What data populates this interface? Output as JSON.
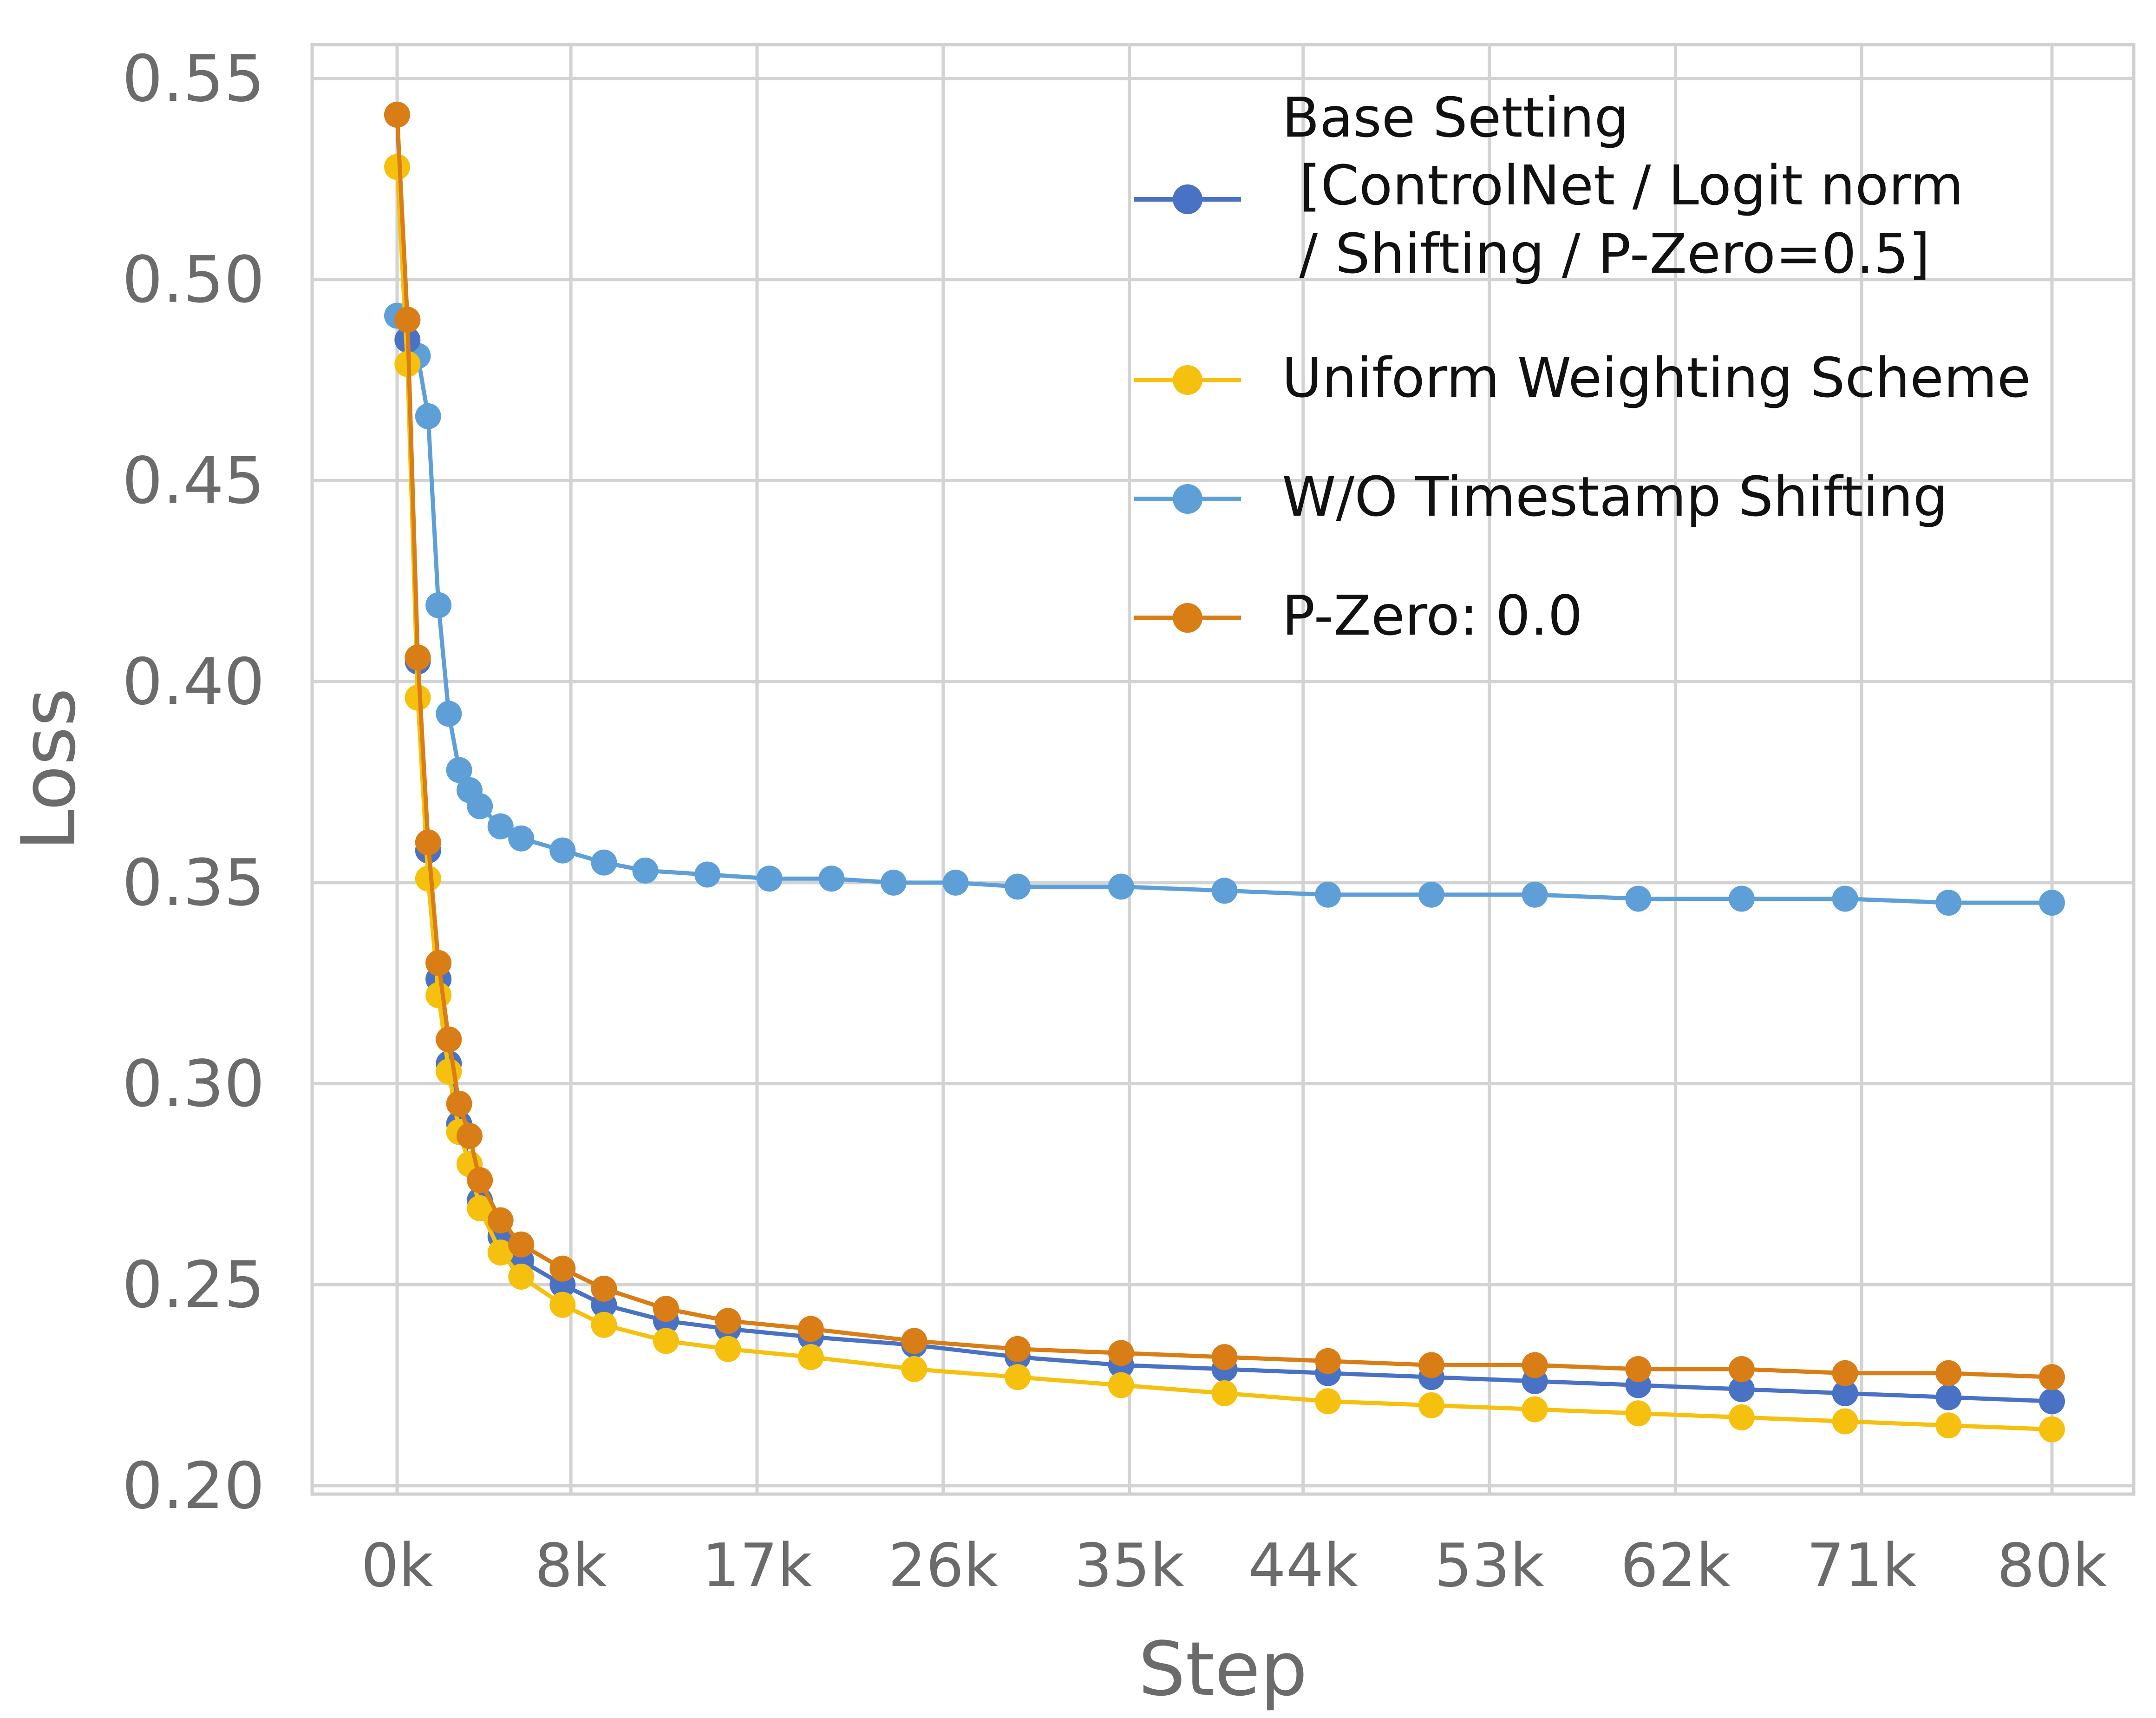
{
  "chart_data": {
    "type": "line",
    "title": "",
    "xlabel": "Step",
    "ylabel": "Loss",
    "x_range_k": [
      0,
      80
    ],
    "ylim": [
      0.2,
      0.55
    ],
    "grid": true,
    "legend_position": "top-right",
    "x_ticks": [
      {
        "value": 0,
        "label": "0k"
      },
      {
        "value": 8.4,
        "label": "8k"
      },
      {
        "value": 17.4,
        "label": "17k"
      },
      {
        "value": 26.4,
        "label": "26k"
      },
      {
        "value": 35.4,
        "label": "35k"
      },
      {
        "value": 43.8,
        "label": "44k"
      },
      {
        "value": 52.8,
        "label": "53k"
      },
      {
        "value": 61.8,
        "label": "62k"
      },
      {
        "value": 70.8,
        "label": "71k"
      },
      {
        "value": 80,
        "label": "80k"
      }
    ],
    "y_ticks": [
      {
        "value": 0.2,
        "label": "0.20"
      },
      {
        "value": 0.25,
        "label": "0.25"
      },
      {
        "value": 0.3,
        "label": "0.30"
      },
      {
        "value": 0.35,
        "label": "0.35"
      },
      {
        "value": 0.4,
        "label": "0.40"
      },
      {
        "value": 0.45,
        "label": "0.45"
      },
      {
        "value": 0.5,
        "label": "0.50"
      },
      {
        "value": 0.55,
        "label": "0.55"
      }
    ],
    "series": [
      {
        "name_lines": [
          "Base Setting",
          " [ControlNet / Logit norm",
          " / Shifting / P-Zero=0.5]"
        ],
        "color": "#4a72c4",
        "x": [
          0,
          0.5,
          1,
          1.5,
          2,
          2.5,
          3,
          3.5,
          4,
          5,
          6,
          8,
          10,
          13,
          16,
          20,
          25,
          30,
          35,
          40,
          45,
          50,
          55,
          60,
          65,
          70,
          75,
          80
        ],
        "y": [
          0.541,
          0.485,
          0.405,
          0.358,
          0.326,
          0.305,
          0.29,
          0.28,
          0.271,
          0.262,
          0.256,
          0.25,
          0.245,
          0.241,
          0.239,
          0.237,
          0.235,
          0.232,
          0.23,
          0.229,
          0.228,
          0.227,
          0.226,
          0.225,
          0.224,
          0.223,
          0.222,
          0.221
        ]
      },
      {
        "name_lines": [
          "Uniform Weighting Scheme"
        ],
        "color": "#f6c00e",
        "x": [
          0,
          0.5,
          1,
          1.5,
          2,
          2.5,
          3,
          3.5,
          4,
          5,
          6,
          8,
          10,
          13,
          16,
          20,
          25,
          30,
          35,
          40,
          45,
          50,
          55,
          60,
          65,
          70,
          75,
          80
        ],
        "y": [
          0.528,
          0.479,
          0.396,
          0.351,
          0.322,
          0.303,
          0.288,
          0.28,
          0.269,
          0.258,
          0.252,
          0.245,
          0.24,
          0.236,
          0.234,
          0.232,
          0.229,
          0.227,
          0.225,
          0.223,
          0.221,
          0.22,
          0.219,
          0.218,
          0.217,
          0.216,
          0.215,
          0.214
        ]
      },
      {
        "name_lines": [
          "W/O Timestamp Shifting"
        ],
        "color": "#5f9fd8",
        "x": [
          0,
          0.5,
          1,
          1.5,
          2,
          2.5,
          3,
          3.5,
          4,
          5,
          6,
          8,
          10,
          12,
          15,
          18,
          21,
          24,
          27,
          30,
          35,
          40,
          45,
          50,
          55,
          60,
          65,
          70,
          75,
          80
        ],
        "y": [
          0.491,
          0.49,
          0.481,
          0.466,
          0.419,
          0.392,
          0.378,
          0.373,
          0.369,
          0.364,
          0.361,
          0.358,
          0.355,
          0.353,
          0.352,
          0.351,
          0.351,
          0.35,
          0.35,
          0.349,
          0.349,
          0.348,
          0.347,
          0.347,
          0.347,
          0.346,
          0.346,
          0.346,
          0.345,
          0.345
        ]
      },
      {
        "name_lines": [
          "P-Zero: 0.0"
        ],
        "color": "#d97e16",
        "x": [
          0,
          0.5,
          1,
          1.5,
          2,
          2.5,
          3,
          3.5,
          4,
          5,
          6,
          8,
          10,
          13,
          16,
          20,
          25,
          30,
          35,
          40,
          45,
          50,
          55,
          60,
          65,
          70,
          75,
          80
        ],
        "y": [
          0.541,
          0.49,
          0.406,
          0.36,
          0.33,
          0.311,
          0.295,
          0.287,
          0.276,
          0.266,
          0.26,
          0.254,
          0.249,
          0.244,
          0.241,
          0.239,
          0.236,
          0.234,
          0.233,
          0.232,
          0.231,
          0.23,
          0.23,
          0.229,
          0.229,
          0.228,
          0.228,
          0.227
        ]
      }
    ]
  }
}
